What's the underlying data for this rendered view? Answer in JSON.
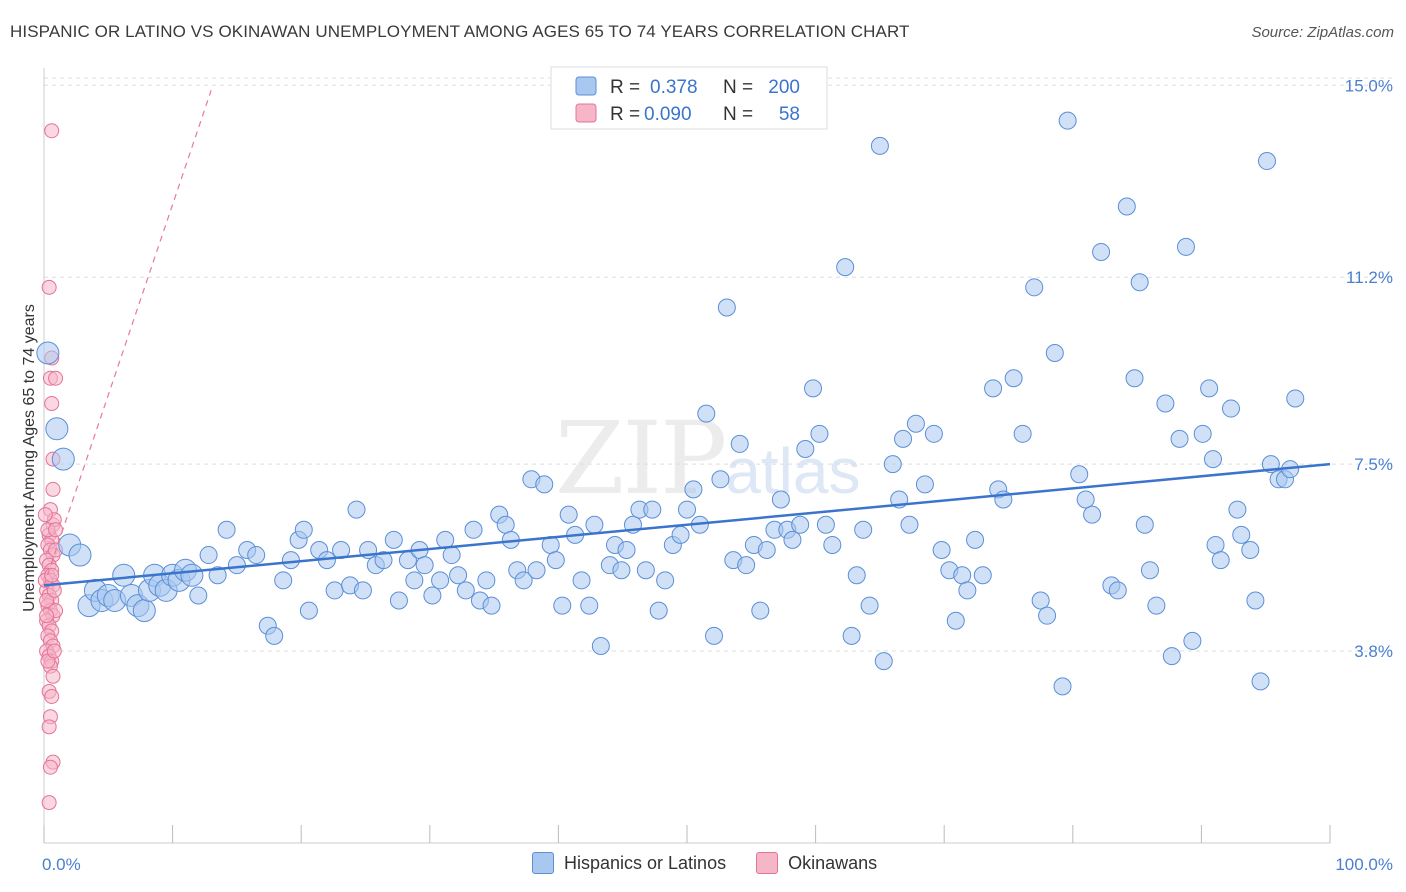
{
  "title": "HISPANIC OR LATINO VS OKINAWAN UNEMPLOYMENT AMONG AGES 65 TO 74 YEARS CORRELATION CHART",
  "source": "Source: ZipAtlas.com",
  "watermark": {
    "main": "ZIP",
    "sub": "atlas"
  },
  "colors": {
    "blue_fill": "#a9c8f0",
    "blue_stroke": "#5b8fd6",
    "blue_line": "#3a74cc",
    "pink_fill": "#f5b6c8",
    "pink_stroke": "#e57399",
    "pink_line": "#e8799c",
    "tick_text": "#4a7fd0",
    "grid": "#dddddd"
  },
  "legend": {
    "rows": [
      {
        "r_label": "R = ",
        "r_value": "0.378",
        "n_label": "N = ",
        "n_value": "200"
      },
      {
        "r_label": "R = ",
        "r_value": "0.090",
        "n_label": "N = ",
        "n_value": "58"
      }
    ]
  },
  "bottom_legend": [
    "Hispanics or Latinos",
    "Okinawans"
  ],
  "chart_data": {
    "type": "scatter",
    "xlabel": "",
    "ylabel": "Unemployment Among Ages 65 to 74 years",
    "xlim": [
      0,
      100
    ],
    "ylim": [
      0,
      15.5
    ],
    "x_tick_labels": [
      "0.0%",
      "100.0%"
    ],
    "y_ticks": [
      3.8,
      7.5,
      11.2,
      15.0
    ],
    "y_tick_labels": [
      "3.8%",
      "7.5%",
      "11.2%",
      "15.0%"
    ],
    "series": [
      {
        "name": "Hispanics or Latinos",
        "trend": {
          "x": [
            0,
            100
          ],
          "y": [
            5.1,
            7.5
          ]
        },
        "points": [
          [
            0.3,
            9.7
          ],
          [
            1.0,
            8.2
          ],
          [
            1.5,
            7.6
          ],
          [
            2.0,
            5.9
          ],
          [
            2.8,
            5.7
          ],
          [
            3.5,
            4.7
          ],
          [
            4.0,
            5.0
          ],
          [
            4.5,
            4.8
          ],
          [
            5.0,
            4.9
          ],
          [
            5.5,
            4.8
          ],
          [
            6.2,
            5.3
          ],
          [
            6.8,
            4.9
          ],
          [
            7.3,
            4.7
          ],
          [
            7.8,
            4.6
          ],
          [
            8.2,
            5.0
          ],
          [
            8.6,
            5.3
          ],
          [
            9.0,
            5.1
          ],
          [
            9.5,
            5.0
          ],
          [
            10.0,
            5.3
          ],
          [
            10.5,
            5.2
          ],
          [
            11.0,
            5.4
          ],
          [
            11.5,
            5.3
          ],
          [
            12.0,
            4.9
          ],
          [
            12.8,
            5.7
          ],
          [
            13.5,
            5.3
          ],
          [
            14.2,
            6.2
          ],
          [
            15.0,
            5.5
          ],
          [
            15.8,
            5.8
          ],
          [
            16.5,
            5.7
          ],
          [
            17.4,
            4.3
          ],
          [
            17.9,
            4.1
          ],
          [
            18.6,
            5.2
          ],
          [
            19.2,
            5.6
          ],
          [
            19.8,
            6.0
          ],
          [
            20.2,
            6.2
          ],
          [
            20.6,
            4.6
          ],
          [
            21.4,
            5.8
          ],
          [
            22.0,
            5.6
          ],
          [
            22.6,
            5.0
          ],
          [
            23.1,
            5.8
          ],
          [
            23.8,
            5.1
          ],
          [
            24.3,
            6.6
          ],
          [
            24.8,
            5.0
          ],
          [
            25.2,
            5.8
          ],
          [
            25.8,
            5.5
          ],
          [
            26.4,
            5.6
          ],
          [
            27.2,
            6.0
          ],
          [
            27.6,
            4.8
          ],
          [
            28.3,
            5.6
          ],
          [
            28.8,
            5.2
          ],
          [
            29.2,
            5.8
          ],
          [
            29.6,
            5.5
          ],
          [
            30.2,
            4.9
          ],
          [
            30.8,
            5.2
          ],
          [
            31.2,
            6.0
          ],
          [
            31.7,
            5.7
          ],
          [
            32.2,
            5.3
          ],
          [
            32.8,
            5.0
          ],
          [
            33.4,
            6.2
          ],
          [
            33.9,
            4.8
          ],
          [
            34.4,
            5.2
          ],
          [
            34.8,
            4.7
          ],
          [
            35.4,
            6.5
          ],
          [
            35.9,
            6.3
          ],
          [
            36.3,
            6.0
          ],
          [
            36.8,
            5.4
          ],
          [
            37.3,
            5.2
          ],
          [
            37.9,
            7.2
          ],
          [
            38.3,
            5.4
          ],
          [
            38.9,
            7.1
          ],
          [
            39.4,
            5.9
          ],
          [
            39.8,
            5.6
          ],
          [
            40.3,
            4.7
          ],
          [
            40.8,
            6.5
          ],
          [
            41.3,
            6.1
          ],
          [
            41.8,
            5.2
          ],
          [
            42.4,
            4.7
          ],
          [
            42.8,
            6.3
          ],
          [
            43.3,
            3.9
          ],
          [
            44.0,
            5.5
          ],
          [
            44.4,
            5.9
          ],
          [
            44.9,
            5.4
          ],
          [
            45.3,
            5.8
          ],
          [
            45.8,
            6.3
          ],
          [
            46.3,
            6.6
          ],
          [
            46.8,
            5.4
          ],
          [
            47.3,
            6.6
          ],
          [
            47.8,
            4.6
          ],
          [
            48.3,
            5.2
          ],
          [
            48.9,
            5.9
          ],
          [
            49.5,
            6.1
          ],
          [
            50.0,
            6.6
          ],
          [
            50.5,
            7.0
          ],
          [
            51.0,
            6.3
          ],
          [
            51.5,
            8.5
          ],
          [
            52.1,
            4.1
          ],
          [
            52.6,
            7.2
          ],
          [
            53.1,
            10.6
          ],
          [
            53.6,
            5.6
          ],
          [
            54.1,
            7.9
          ],
          [
            54.6,
            5.5
          ],
          [
            55.2,
            5.9
          ],
          [
            55.7,
            4.6
          ],
          [
            56.2,
            5.8
          ],
          [
            56.8,
            6.2
          ],
          [
            57.3,
            6.8
          ],
          [
            57.8,
            6.2
          ],
          [
            58.2,
            6.0
          ],
          [
            58.8,
            6.3
          ],
          [
            59.2,
            7.8
          ],
          [
            59.8,
            9.0
          ],
          [
            60.3,
            8.1
          ],
          [
            60.8,
            6.3
          ],
          [
            61.3,
            5.9
          ],
          [
            62.3,
            11.4
          ],
          [
            62.8,
            4.1
          ],
          [
            63.2,
            5.3
          ],
          [
            63.7,
            6.2
          ],
          [
            64.2,
            4.7
          ],
          [
            65.0,
            13.8
          ],
          [
            65.3,
            3.6
          ],
          [
            66.0,
            7.5
          ],
          [
            66.5,
            6.8
          ],
          [
            66.8,
            8.0
          ],
          [
            67.3,
            6.3
          ],
          [
            67.8,
            8.3
          ],
          [
            68.5,
            7.1
          ],
          [
            69.2,
            8.1
          ],
          [
            69.8,
            5.8
          ],
          [
            70.4,
            5.4
          ],
          [
            70.9,
            4.4
          ],
          [
            71.4,
            5.3
          ],
          [
            71.8,
            5.0
          ],
          [
            72.4,
            6.0
          ],
          [
            73.0,
            5.3
          ],
          [
            73.8,
            9.0
          ],
          [
            74.2,
            7.0
          ],
          [
            74.6,
            6.8
          ],
          [
            75.4,
            9.2
          ],
          [
            76.1,
            8.1
          ],
          [
            77.0,
            11.0
          ],
          [
            77.5,
            4.8
          ],
          [
            78.0,
            4.5
          ],
          [
            78.6,
            9.7
          ],
          [
            79.2,
            3.1
          ],
          [
            79.6,
            14.3
          ],
          [
            80.5,
            7.3
          ],
          [
            81.0,
            6.8
          ],
          [
            81.5,
            6.5
          ],
          [
            82.2,
            11.7
          ],
          [
            83.0,
            5.1
          ],
          [
            83.5,
            5.0
          ],
          [
            84.2,
            12.6
          ],
          [
            84.8,
            9.2
          ],
          [
            85.2,
            11.1
          ],
          [
            85.6,
            6.3
          ],
          [
            86.0,
            5.4
          ],
          [
            86.5,
            4.7
          ],
          [
            87.2,
            8.7
          ],
          [
            87.7,
            3.7
          ],
          [
            88.3,
            8.0
          ],
          [
            88.8,
            11.8
          ],
          [
            89.3,
            4.0
          ],
          [
            90.1,
            8.1
          ],
          [
            90.6,
            9.0
          ],
          [
            91.1,
            5.9
          ],
          [
            92.3,
            8.6
          ],
          [
            92.8,
            6.6
          ],
          [
            93.8,
            5.8
          ],
          [
            94.6,
            3.2
          ],
          [
            94.2,
            4.8
          ],
          [
            95.1,
            13.5
          ],
          [
            96.0,
            7.2
          ],
          [
            96.5,
            7.2
          ],
          [
            96.9,
            7.4
          ],
          [
            97.3,
            8.8
          ],
          [
            91.5,
            5.6
          ],
          [
            90.9,
            7.6
          ],
          [
            95.4,
            7.5
          ],
          [
            93.1,
            6.1
          ]
        ]
      },
      {
        "name": "Okinawans",
        "trend": {
          "x": [
            0,
            13.0
          ],
          "y": [
            5.1,
            14.9
          ]
        },
        "points": [
          [
            0.6,
            14.1
          ],
          [
            0.4,
            11.0
          ],
          [
            0.6,
            9.6
          ],
          [
            0.5,
            9.2
          ],
          [
            0.6,
            8.7
          ],
          [
            0.7,
            7.6
          ],
          [
            0.7,
            7.0
          ],
          [
            0.5,
            6.6
          ],
          [
            0.7,
            6.3
          ],
          [
            0.4,
            6.1
          ],
          [
            0.6,
            6.0
          ],
          [
            0.3,
            5.9
          ],
          [
            0.5,
            5.8
          ],
          [
            0.7,
            5.7
          ],
          [
            0.2,
            5.6
          ],
          [
            0.4,
            5.5
          ],
          [
            0.6,
            5.4
          ],
          [
            0.3,
            5.3
          ],
          [
            0.5,
            5.2
          ],
          [
            0.7,
            5.1
          ],
          [
            0.2,
            5.0
          ],
          [
            0.4,
            4.9
          ],
          [
            0.6,
            4.8
          ],
          [
            0.3,
            4.7
          ],
          [
            0.5,
            4.6
          ],
          [
            0.7,
            4.5
          ],
          [
            0.2,
            4.4
          ],
          [
            0.4,
            4.3
          ],
          [
            0.6,
            4.2
          ],
          [
            0.3,
            4.1
          ],
          [
            0.5,
            4.0
          ],
          [
            0.7,
            3.9
          ],
          [
            0.2,
            3.8
          ],
          [
            0.4,
            3.7
          ],
          [
            0.6,
            3.6
          ],
          [
            0.5,
            3.5
          ],
          [
            0.7,
            3.3
          ],
          [
            0.4,
            3.0
          ],
          [
            0.6,
            2.9
          ],
          [
            0.5,
            2.5
          ],
          [
            0.4,
            2.3
          ],
          [
            0.7,
            1.6
          ],
          [
            0.5,
            1.5
          ],
          [
            0.4,
            0.8
          ],
          [
            0.9,
            9.2
          ],
          [
            0.8,
            6.4
          ],
          [
            0.3,
            6.2
          ],
          [
            0.9,
            5.8
          ],
          [
            0.2,
            4.8
          ],
          [
            0.8,
            5.0
          ],
          [
            0.3,
            3.6
          ],
          [
            0.9,
            4.6
          ],
          [
            0.1,
            5.2
          ],
          [
            0.8,
            3.8
          ],
          [
            0.1,
            6.5
          ],
          [
            0.9,
            6.2
          ],
          [
            0.2,
            4.5
          ],
          [
            0.6,
            5.3
          ]
        ]
      }
    ]
  }
}
